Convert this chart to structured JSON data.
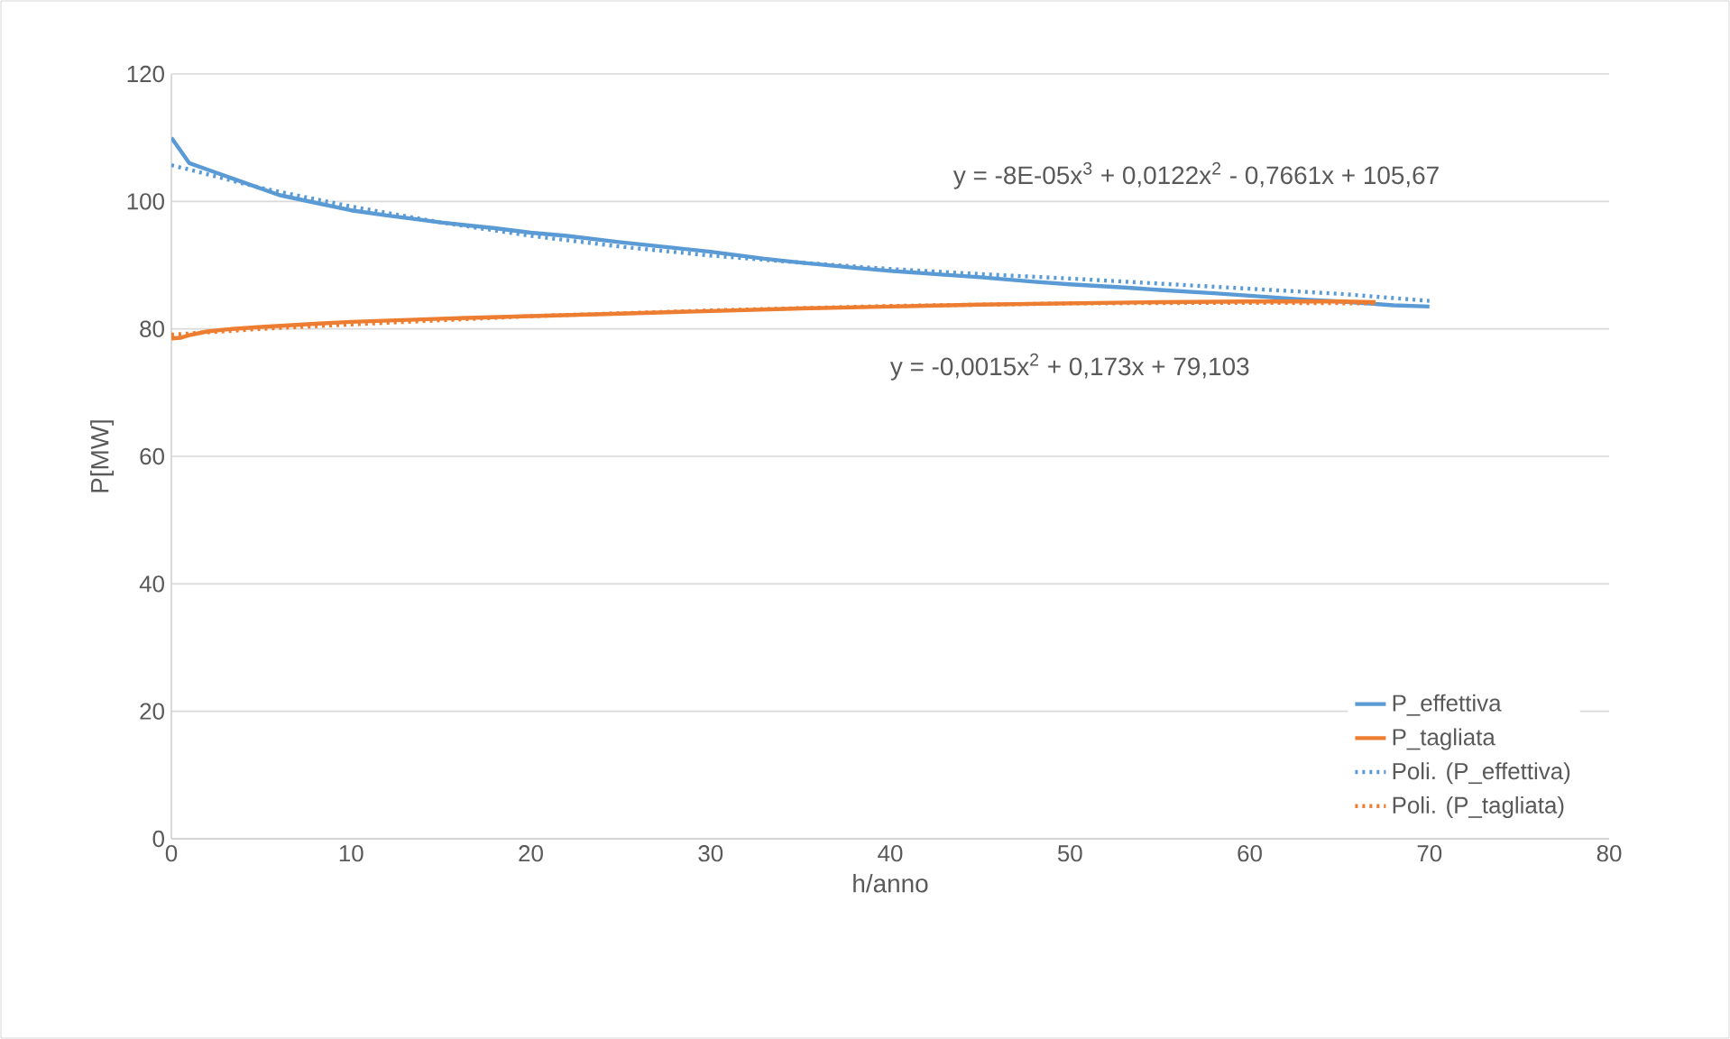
{
  "chart_data": {
    "type": "line",
    "xlabel": "h/anno",
    "ylabel": "P[MW]",
    "xlim": [
      0,
      80
    ],
    "ylim": [
      0,
      120
    ],
    "xticks": [
      0,
      10,
      20,
      30,
      40,
      50,
      60,
      70,
      80
    ],
    "yticks": [
      0,
      20,
      40,
      60,
      80,
      100,
      120
    ],
    "grid": "y",
    "legend": "bottom right",
    "marker": "none",
    "series": [
      {
        "name": "P_effettiva",
        "color": "#5b9bd5",
        "line_style": "solid",
        "x": [
          0,
          0.5,
          1,
          2,
          3,
          4,
          6,
          8,
          10,
          12,
          15,
          18,
          20,
          22,
          25,
          28,
          30,
          33,
          35,
          38,
          40,
          43,
          45,
          48,
          50,
          53,
          55,
          58,
          60,
          63,
          65,
          68,
          70
        ],
        "values": [
          110,
          108,
          106,
          105,
          104,
          103,
          101,
          99.8,
          98.6,
          97.8,
          96.7,
          95.8,
          95.1,
          94.6,
          93.6,
          92.7,
          92.1,
          91,
          90.4,
          89.6,
          89.1,
          88.5,
          88.1,
          87.4,
          87,
          86.5,
          86.1,
          85.6,
          85.2,
          84.6,
          84.3,
          83.7,
          83.5
        ]
      },
      {
        "name": "P_tagliata",
        "color": "#ed7d31",
        "line_style": "solid",
        "x": [
          0,
          0.5,
          1,
          2,
          3,
          5,
          8,
          10,
          15,
          20,
          25,
          30,
          35,
          40,
          45,
          50,
          55,
          60,
          65,
          67
        ],
        "values": [
          78.5,
          78.6,
          79,
          79.6,
          79.9,
          80.3,
          80.8,
          81.1,
          81.6,
          82,
          82.4,
          82.8,
          83.2,
          83.5,
          83.8,
          84,
          84.2,
          84.3,
          84.3,
          84.2
        ]
      },
      {
        "name": "Poli. (P_effettiva)",
        "type": "line",
        "color": "#5b9bd5",
        "line_style": "dotted",
        "x": [
          0,
          5,
          10,
          15,
          20,
          25,
          30,
          35,
          40,
          45,
          50,
          55,
          60,
          65,
          70
        ],
        "values": [
          105.7,
          102.1,
          99.2,
          96.7,
          94.6,
          92.9,
          91.5,
          90.4,
          89.4,
          88.6,
          87.9,
          87.1,
          86.3,
          85.5,
          84.4
        ]
      },
      {
        "name": "Poli. (P_tagliata)",
        "type": "line",
        "color": "#ed7d31",
        "line_style": "dotted",
        "x": [
          0,
          5,
          10,
          20,
          30,
          40,
          50,
          60,
          67
        ],
        "values": [
          79.1,
          80,
          80.7,
          82,
          82.9,
          83.6,
          84,
          84.1,
          84
        ]
      }
    ],
    "annotations": [
      "y = -8E-05x$^{3}$ + 0,0122x$^{2}$ - 0,7661x + 105,67",
      "y = -0,0015x$^{2}$ + 0,173x + 79,103"
    ]
  }
}
